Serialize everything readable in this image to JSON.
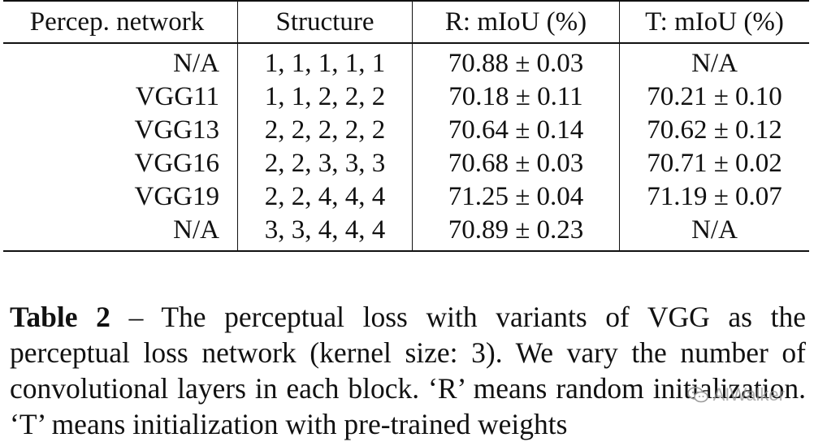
{
  "table": {
    "headers": [
      "Percep. network",
      "Structure",
      "R: mIoU (%)",
      "T: mIoU (%)"
    ],
    "rows": [
      {
        "network": "N/A",
        "structure": "1, 1, 1, 1, 1",
        "r": "70.88 ± 0.03",
        "t": "N/A"
      },
      {
        "network": "VGG11",
        "structure": "1, 1, 2, 2, 2",
        "r": "70.18 ± 0.11",
        "t": "70.21 ± 0.10"
      },
      {
        "network": "VGG13",
        "structure": "2, 2, 2, 2, 2",
        "r": "70.64 ± 0.14",
        "t": "70.62 ± 0.12"
      },
      {
        "network": "VGG16",
        "structure": "2, 2, 3, 3, 3",
        "r": "70.68 ± 0.03",
        "t": "70.71 ± 0.02"
      },
      {
        "network": "VGG19",
        "structure": "2, 2, 4, 4, 4",
        "r": "71.25 ± 0.04",
        "t": "71.19 ± 0.07"
      },
      {
        "network": "N/A",
        "structure": "3, 3, 4, 4, 4",
        "r": "70.89 ± 0.23",
        "t": "N/A"
      }
    ]
  },
  "caption": {
    "label": "Table 2",
    "text": " – The perceptual loss with variants of VGG as the perceptual loss network (kernel size: 3). We vary the number of convolutional layers in each block. ‘R’ means random initialization. ‘T’ means initialization with pre-trained weights"
  },
  "watermark": {
    "icon": "wechat-icon",
    "text": "AIWalker"
  }
}
